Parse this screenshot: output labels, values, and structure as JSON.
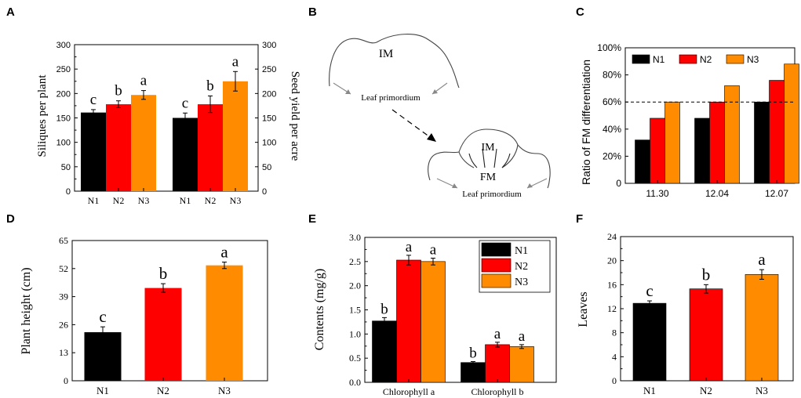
{
  "colors": {
    "N1": "#000000",
    "N2": "#ff0000",
    "N3": "#ff8c00",
    "axis": "#000000",
    "diagram": "#555555"
  },
  "chart_data": [
    {
      "panel": "A",
      "type": "bar",
      "groups": [
        "Siliques per plant",
        "Seed yield per acre"
      ],
      "categories": [
        "N1",
        "N2",
        "N3",
        "N1",
        "N2",
        "N3"
      ],
      "values": [
        161,
        178,
        197,
        150,
        178,
        225
      ],
      "errors": [
        6,
        7,
        9,
        10,
        17,
        20
      ],
      "letters": [
        "c",
        "b",
        "a",
        "c",
        "b",
        "a"
      ],
      "ylabel_left": "Siliques per plant",
      "ylabel_right": "Seed yield per acre",
      "ylim": [
        0,
        300
      ],
      "yticks": [
        "0",
        "50",
        "100",
        "150",
        "200",
        "250",
        "300"
      ]
    },
    {
      "panel": "C",
      "type": "bar",
      "categories": [
        "11.30",
        "12.04",
        "12.07"
      ],
      "series": [
        {
          "name": "N1",
          "values": [
            32,
            48,
            60
          ]
        },
        {
          "name": "N2",
          "values": [
            48,
            60,
            76
          ]
        },
        {
          "name": "N3",
          "values": [
            60,
            72,
            88
          ]
        }
      ],
      "threshold": 60,
      "ylabel": "Ratio of FM differentiation",
      "ylim": [
        0,
        100
      ],
      "yticks": [
        "0",
        "20%",
        "40%",
        "60%",
        "80%",
        "100%"
      ],
      "legend": "top-left"
    },
    {
      "panel": "D",
      "type": "bar",
      "categories": [
        "N1",
        "N2",
        "N3"
      ],
      "values": [
        22.5,
        43,
        53.5
      ],
      "errors": [
        2.5,
        2.0,
        1.5
      ],
      "letters": [
        "c",
        "b",
        "a"
      ],
      "ylabel": "Plant height (cm)",
      "ylim": [
        0,
        65
      ],
      "yticks": [
        "0",
        "13",
        "26",
        "39",
        "52",
        "65"
      ]
    },
    {
      "panel": "E",
      "type": "bar",
      "categories": [
        "Chlorophyll a",
        "Chlorophyll b"
      ],
      "series": [
        {
          "name": "N1",
          "values": [
            1.27,
            0.41
          ],
          "errors": [
            0.07,
            0.02
          ],
          "letters": [
            "b",
            "b"
          ]
        },
        {
          "name": "N2",
          "values": [
            2.53,
            0.78
          ],
          "errors": [
            0.1,
            0.05
          ],
          "letters": [
            "a",
            "a"
          ]
        },
        {
          "name": "N3",
          "values": [
            2.5,
            0.74
          ],
          "errors": [
            0.07,
            0.04
          ],
          "letters": [
            "a",
            "a"
          ]
        }
      ],
      "ylabel": "Contents (mg/g)",
      "ylim": [
        0,
        3.0
      ],
      "yticks": [
        "0.0",
        "0.5",
        "1.0",
        "1.5",
        "2.0",
        "2.5",
        "3.0"
      ],
      "legend": "top-right"
    },
    {
      "panel": "F",
      "type": "bar",
      "categories": [
        "N1",
        "N2",
        "N3"
      ],
      "values": [
        12.9,
        15.3,
        17.7
      ],
      "errors": [
        0.4,
        0.7,
        0.8
      ],
      "letters": [
        "c",
        "b",
        "a"
      ],
      "ylabel": "Leaves",
      "ylim": [
        0,
        24
      ],
      "yticks": [
        "0",
        "4",
        "8",
        "12",
        "16",
        "20",
        "24"
      ]
    }
  ],
  "diagram": {
    "panel": "B",
    "im_label": "IM",
    "leaf_label_top": "Leaf primordium",
    "im_label_bottom": "IM",
    "fm_label": "FM",
    "leaf_label_bottom": "Leaf primordium"
  },
  "panel_letters": {
    "A": "A",
    "B": "B",
    "C": "C",
    "D": "D",
    "E": "E",
    "F": "F"
  }
}
